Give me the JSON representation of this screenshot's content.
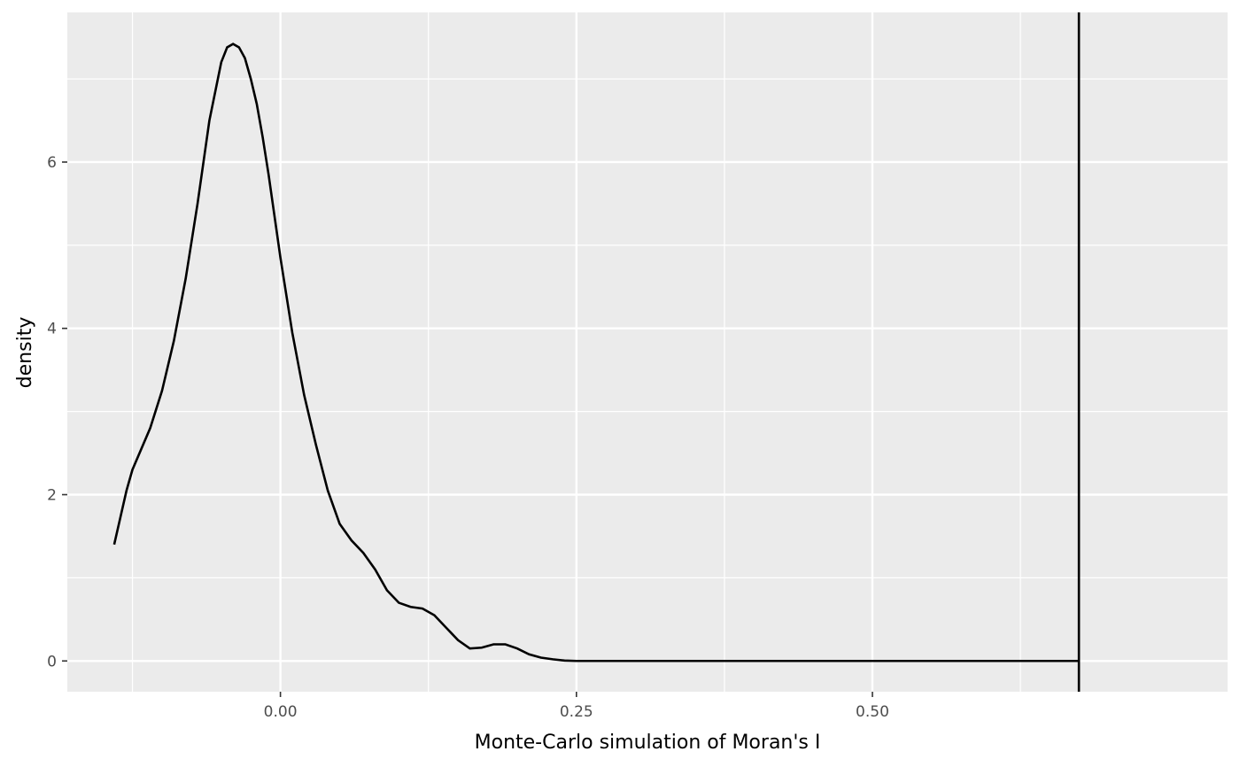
{
  "chart_data": {
    "type": "line",
    "title": "",
    "xlabel": "Monte-Carlo simulation of Moran's I",
    "ylabel": "density",
    "xlim": [
      -0.18,
      0.8
    ],
    "ylim": [
      -0.37,
      7.8
    ],
    "x_ticks": [
      0.0,
      0.25,
      0.5
    ],
    "x_tick_labels": [
      "0.00",
      "0.25",
      "0.50"
    ],
    "y_ticks": [
      0,
      2,
      4,
      6
    ],
    "y_tick_labels": [
      "0",
      "2",
      "4",
      "6"
    ],
    "grid": true,
    "legend": "none",
    "colors": {
      "panel": "#ebebeb",
      "grid": "#ffffff",
      "line": "#000000",
      "tick_text": "#4d4d4d"
    },
    "series": [
      {
        "x": [
          -0.1404,
          -0.13,
          -0.125,
          -0.11,
          -0.1,
          -0.09,
          -0.08,
          -0.07,
          -0.06,
          -0.05,
          -0.045,
          -0.04,
          -0.035,
          -0.03,
          -0.025,
          -0.02,
          -0.015,
          -0.01,
          -0.005,
          0.0,
          0.01,
          0.02,
          0.03,
          0.04,
          0.05,
          0.06,
          0.07,
          0.08,
          0.09,
          0.1,
          0.11,
          0.12,
          0.13,
          0.14,
          0.15,
          0.16,
          0.17,
          0.18,
          0.19,
          0.2,
          0.21,
          0.22,
          0.23,
          0.24,
          0.25,
          0.26,
          0.27,
          0.28,
          0.3,
          0.35,
          0.4,
          0.5,
          0.6,
          0.6744
        ],
        "y": [
          1.4,
          2.05,
          2.3,
          2.8,
          3.25,
          3.85,
          4.6,
          5.5,
          6.5,
          7.2,
          7.38,
          7.42,
          7.38,
          7.25,
          7.0,
          6.7,
          6.3,
          5.85,
          5.35,
          4.85,
          3.95,
          3.2,
          2.6,
          2.05,
          1.65,
          1.45,
          1.3,
          1.1,
          0.85,
          0.7,
          0.65,
          0.63,
          0.55,
          0.4,
          0.25,
          0.15,
          0.16,
          0.2,
          0.2,
          0.15,
          0.08,
          0.04,
          0.02,
          0.005,
          0.0,
          0.0,
          0.0,
          0.0,
          0.0,
          0.0,
          0.0,
          0.0,
          0.0,
          0.0
        ]
      }
    ],
    "vline_x": 0.6744
  }
}
